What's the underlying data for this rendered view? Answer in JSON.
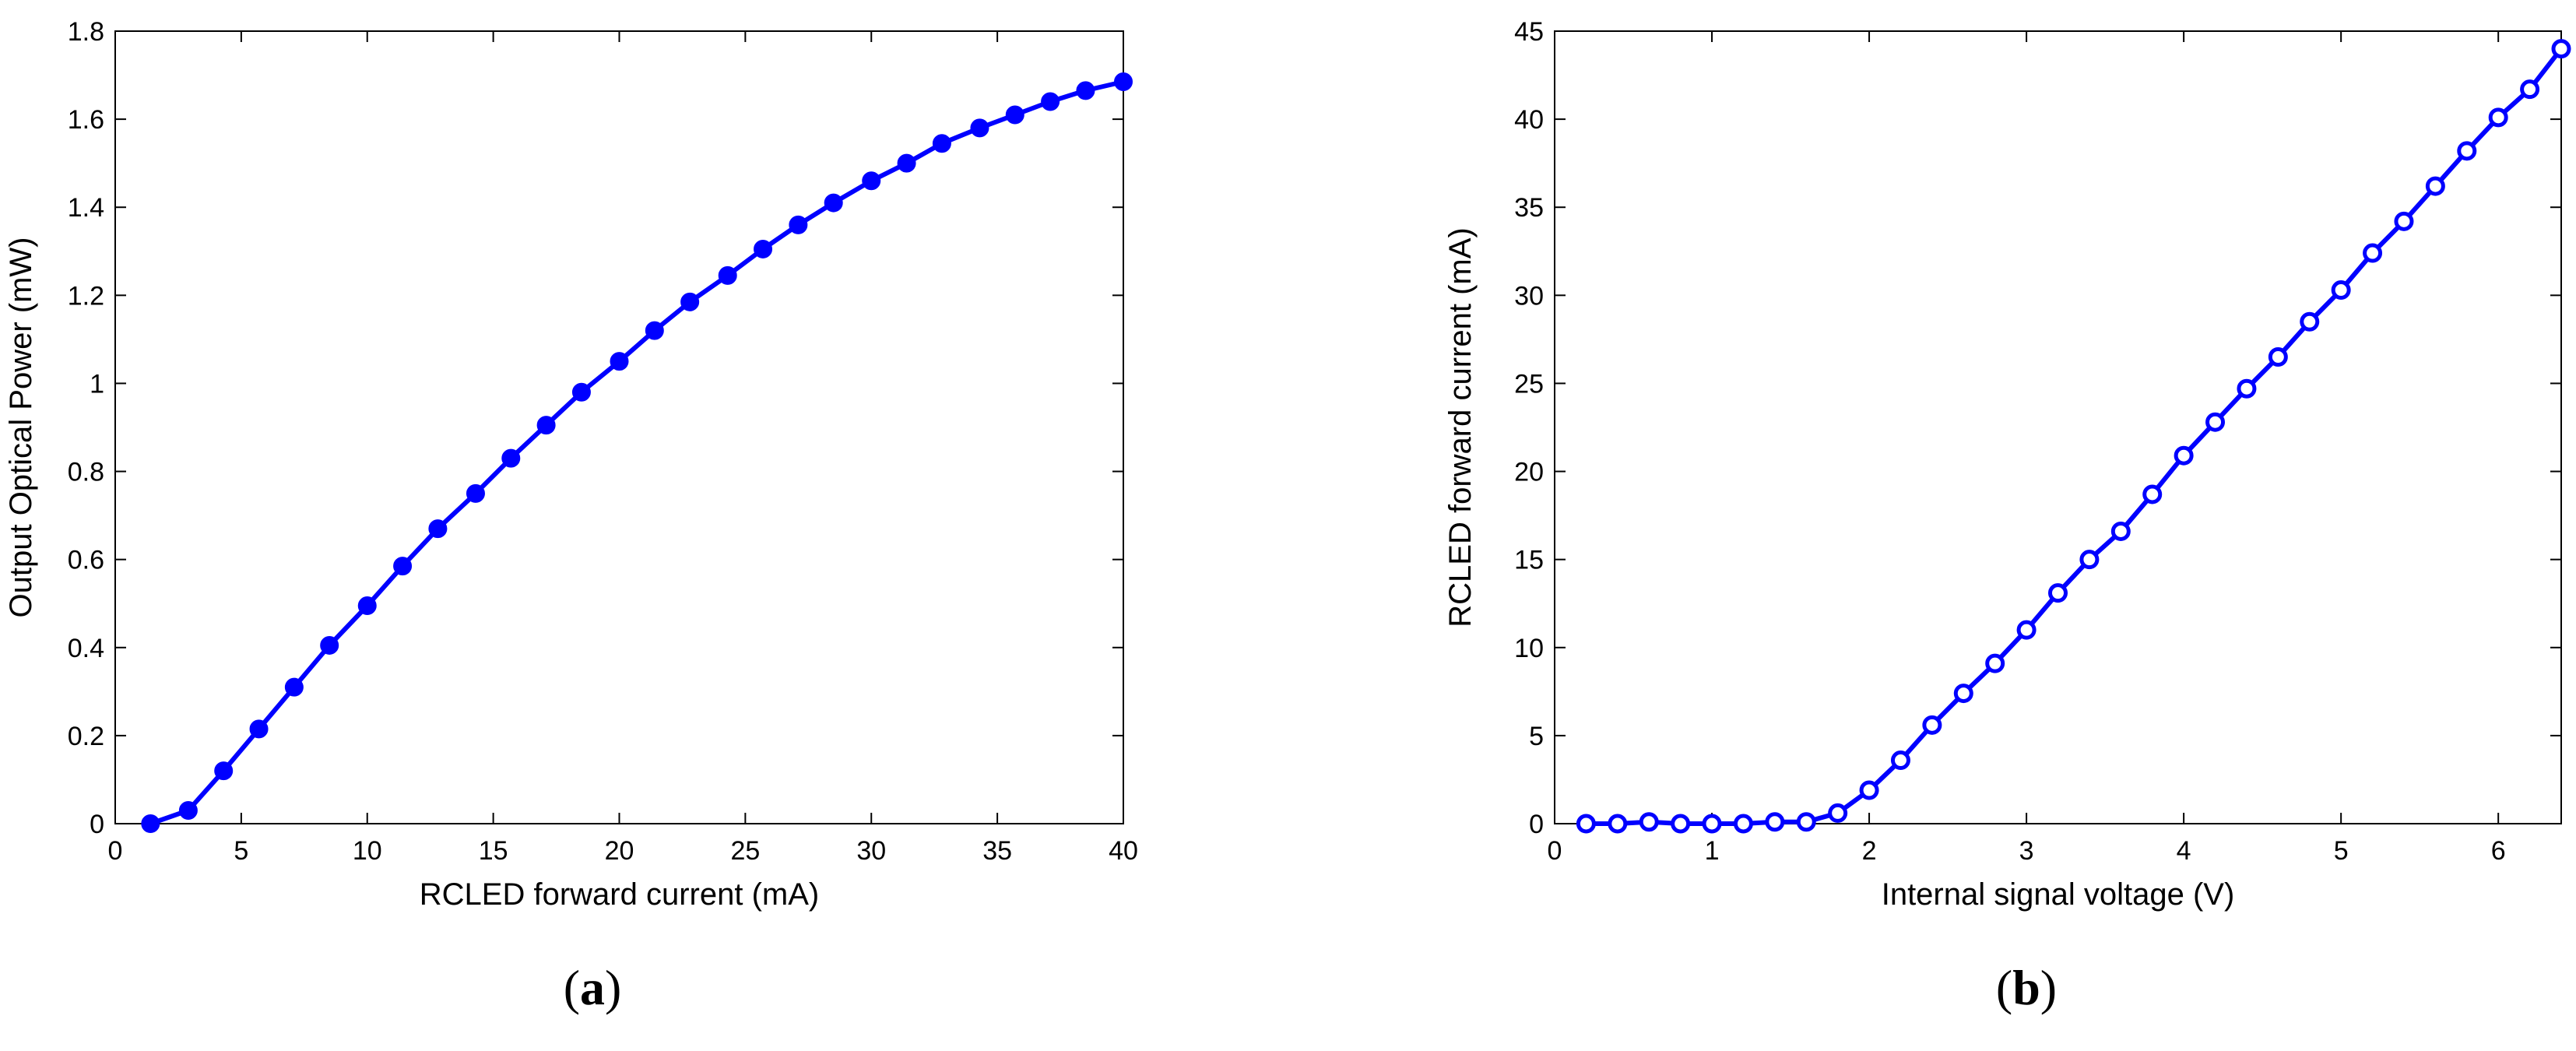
{
  "chart_data": [
    {
      "type": "line",
      "panel": "a",
      "caption": {
        "open": "(",
        "letter": "a",
        "close": ")"
      },
      "xlabel": "RCLED forward current (mA)",
      "ylabel": "Output Optical Power (mW)",
      "xlim": [
        0,
        40
      ],
      "ylim": [
        0,
        1.8
      ],
      "xticks": [
        0,
        5,
        10,
        15,
        20,
        25,
        30,
        35,
        40
      ],
      "yticks": [
        0,
        0.2,
        0.4,
        0.6,
        0.8,
        1,
        1.2,
        1.4,
        1.6,
        1.8
      ],
      "xtick_labels": [
        "0",
        "5",
        "10",
        "15",
        "20",
        "25",
        "30",
        "35",
        "40"
      ],
      "ytick_labels": [
        "0",
        "0.2",
        "0.4",
        "0.6",
        "0.8",
        "1",
        "1.2",
        "1.4",
        "1.6",
        "1.8"
      ],
      "grid": false,
      "marker": "filled-circle",
      "color": "#0000ff",
      "series": [
        {
          "x": [
            1.4,
            2.9,
            4.3,
            5.7,
            7.1,
            8.5,
            10.0,
            11.4,
            12.8,
            14.3,
            15.7,
            17.1,
            18.5,
            20.0,
            21.4,
            22.8,
            24.3,
            25.7,
            27.1,
            28.5,
            30.0,
            31.4,
            32.8,
            34.3,
            35.7,
            37.1,
            38.5,
            40.0
          ],
          "y": [
            0.0,
            0.03,
            0.12,
            0.215,
            0.31,
            0.405,
            0.495,
            0.585,
            0.67,
            0.75,
            0.83,
            0.905,
            0.98,
            1.05,
            1.12,
            1.185,
            1.245,
            1.305,
            1.36,
            1.41,
            1.46,
            1.5,
            1.545,
            1.58,
            1.61,
            1.64,
            1.665,
            1.685
          ]
        }
      ]
    },
    {
      "type": "line",
      "panel": "b",
      "caption": {
        "open": "(",
        "letter": "b",
        "close": ")"
      },
      "xlabel": "Internal signal voltage (V)",
      "ylabel": "RCLED forward current (mA)",
      "xlim": [
        0,
        6.4
      ],
      "ylim": [
        0,
        45
      ],
      "xticks": [
        0,
        1,
        2,
        3,
        4,
        5,
        6
      ],
      "yticks": [
        0,
        5,
        10,
        15,
        20,
        25,
        30,
        35,
        40,
        45
      ],
      "xtick_labels": [
        "0",
        "1",
        "2",
        "3",
        "4",
        "5",
        "6"
      ],
      "ytick_labels": [
        "0",
        "5",
        "10",
        "15",
        "20",
        "25",
        "30",
        "35",
        "40",
        "45"
      ],
      "grid": false,
      "marker": "open-circle",
      "color": "#0000ff",
      "series": [
        {
          "x": [
            0.2,
            0.4,
            0.6,
            0.8,
            1.0,
            1.2,
            1.4,
            1.6,
            1.8,
            2.0,
            2.2,
            2.4,
            2.6,
            2.8,
            3.0,
            3.2,
            3.4,
            3.6,
            3.8,
            4.0,
            4.2,
            4.4,
            4.6,
            4.8,
            5.0,
            5.2,
            5.4,
            5.6,
            5.8,
            6.0,
            6.2,
            6.4
          ],
          "y": [
            0,
            0,
            0.1,
            0,
            0,
            0,
            0.1,
            0.1,
            0.6,
            1.9,
            3.6,
            5.6,
            7.4,
            9.1,
            11.0,
            13.1,
            15.0,
            16.6,
            18.7,
            20.9,
            22.8,
            24.7,
            26.5,
            28.5,
            30.3,
            32.4,
            34.2,
            36.2,
            38.2,
            40.1,
            41.7,
            44.0
          ]
        }
      ]
    }
  ]
}
